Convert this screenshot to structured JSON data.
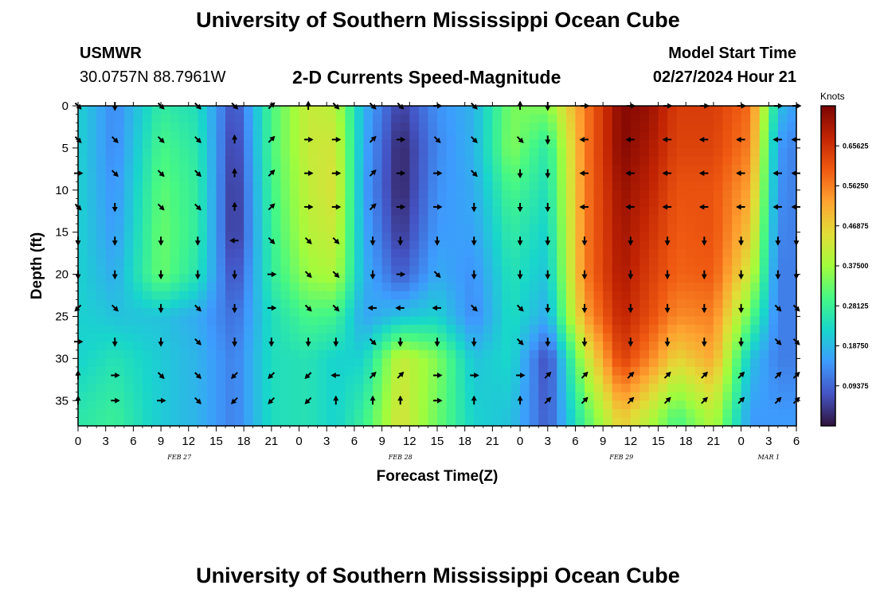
{
  "header": {
    "title": "University of Southern Mississippi Ocean Cube",
    "title_bottom": "University of Southern Mississippi Ocean Cube",
    "station": "USMWR",
    "coords": "30.0757N  88.7961W",
    "subtitle": "2-D Currents Speed-Magnitude",
    "model_start_label": "Model Start Time",
    "model_start_value": "02/27/2024 Hour 21"
  },
  "chart_data": {
    "type": "heatmap",
    "title": "2-D Currents Speed-Magnitude",
    "xlabel": "Forecast Time(Z)",
    "ylabel": "Depth (ft)",
    "units": "Knots",
    "xlim": [
      0,
      78
    ],
    "ylim": [
      38,
      0
    ],
    "x_ticks": [
      "0",
      "3",
      "6",
      "9",
      "12",
      "15",
      "18",
      "21",
      "0",
      "3",
      "6",
      "9",
      "12",
      "15",
      "18",
      "21",
      "0",
      "3",
      "6",
      "9",
      "12",
      "15",
      "18",
      "21",
      "0",
      "3",
      "6"
    ],
    "x_tick_hours": [
      0,
      3,
      6,
      9,
      12,
      15,
      18,
      21,
      24,
      27,
      30,
      33,
      36,
      39,
      42,
      45,
      48,
      51,
      54,
      57,
      60,
      63,
      66,
      69,
      72,
      75,
      78
    ],
    "y_ticks": [
      0,
      5,
      10,
      15,
      20,
      25,
      30,
      35
    ],
    "date_labels": [
      {
        "label": "FEB 27",
        "hour": 11
      },
      {
        "label": "FEB 28",
        "hour": 35
      },
      {
        "label": "FEB 29",
        "hour": 59
      },
      {
        "label": "MAR 1",
        "hour": 75
      }
    ],
    "colorbar": {
      "labels": [
        "0.65625",
        "0.56250",
        "0.46875",
        "0.37500",
        "0.28125",
        "0.18750",
        "0.09375"
      ],
      "values": [
        0.65625,
        0.5625,
        0.46875,
        0.375,
        0.28125,
        0.1875,
        0.09375
      ],
      "min": 0.0,
      "max": 0.75,
      "colors": [
        "#30123b",
        "#4454c4",
        "#3e9bfe",
        "#18d6cb",
        "#46f884",
        "#a2fc3c",
        "#e1dd37",
        "#fea331",
        "#ef5911",
        "#c22403",
        "#7a0403"
      ]
    },
    "speed_profiles": [
      {
        "hour": 0,
        "speed": [
          0.22,
          0.22,
          0.22,
          0.22,
          0.22,
          0.22,
          0.22,
          0.26
        ]
      },
      {
        "hour": 4,
        "speed": [
          0.13,
          0.13,
          0.14,
          0.15,
          0.17,
          0.2,
          0.25,
          0.28
        ]
      },
      {
        "hour": 9,
        "speed": [
          0.27,
          0.3,
          0.32,
          0.33,
          0.33,
          0.2,
          0.21,
          0.21
        ]
      },
      {
        "hour": 13,
        "speed": [
          0.24,
          0.26,
          0.27,
          0.27,
          0.25,
          0.17,
          0.18,
          0.18
        ]
      },
      {
        "hour": 17,
        "speed": [
          0.06,
          0.04,
          0.03,
          0.03,
          0.06,
          0.1,
          0.12,
          0.12
        ]
      },
      {
        "hour": 21,
        "speed": [
          0.3,
          0.3,
          0.29,
          0.28,
          0.27,
          0.24,
          0.24,
          0.24
        ]
      },
      {
        "hour": 25,
        "speed": [
          0.42,
          0.42,
          0.41,
          0.4,
          0.37,
          0.3,
          0.25,
          0.25
        ]
      },
      {
        "hour": 28,
        "speed": [
          0.4,
          0.43,
          0.44,
          0.42,
          0.39,
          0.29,
          0.22,
          0.22
        ]
      },
      {
        "hour": 31,
        "speed": [
          0.18,
          0.17,
          0.16,
          0.17,
          0.18,
          0.16,
          0.22,
          0.28
        ]
      },
      {
        "hour": 35,
        "speed": [
          0.05,
          0.02,
          0.02,
          0.04,
          0.08,
          0.2,
          0.42,
          0.44
        ]
      },
      {
        "hour": 39,
        "speed": [
          0.14,
          0.13,
          0.14,
          0.15,
          0.17,
          0.22,
          0.35,
          0.33
        ]
      },
      {
        "hour": 43,
        "speed": [
          0.18,
          0.18,
          0.17,
          0.16,
          0.14,
          0.13,
          0.2,
          0.22
        ]
      },
      {
        "hour": 47,
        "speed": [
          0.34,
          0.35,
          0.3,
          0.27,
          0.25,
          0.24,
          0.23,
          0.2
        ]
      },
      {
        "hour": 51,
        "speed": [
          0.35,
          0.26,
          0.24,
          0.22,
          0.2,
          0.17,
          0.06,
          0.08
        ]
      },
      {
        "hour": 55,
        "speed": [
          0.56,
          0.56,
          0.56,
          0.56,
          0.56,
          0.52,
          0.4,
          0.3
        ]
      },
      {
        "hour": 59,
        "speed": [
          0.74,
          0.74,
          0.72,
          0.71,
          0.7,
          0.68,
          0.64,
          0.48
        ]
      },
      {
        "hour": 62,
        "speed": [
          0.72,
          0.7,
          0.68,
          0.66,
          0.64,
          0.62,
          0.56,
          0.4
        ]
      },
      {
        "hour": 65,
        "speed": [
          0.64,
          0.63,
          0.61,
          0.6,
          0.59,
          0.55,
          0.46,
          0.3
        ]
      },
      {
        "hour": 69,
        "speed": [
          0.64,
          0.63,
          0.61,
          0.61,
          0.6,
          0.56,
          0.52,
          0.4
        ]
      },
      {
        "hour": 73,
        "speed": [
          0.58,
          0.56,
          0.52,
          0.48,
          0.42,
          0.32,
          0.2,
          0.15
        ]
      },
      {
        "hour": 76,
        "speed": [
          0.2,
          0.15,
          0.14,
          0.13,
          0.12,
          0.12,
          0.12,
          0.15
        ]
      },
      {
        "hour": 78,
        "speed": [
          0.15,
          0.12,
          0.12,
          0.12,
          0.12,
          0.12,
          0.12,
          0.15
        ]
      }
    ],
    "speed_depths_ft": [
      0,
      5,
      10,
      15,
      20,
      25,
      30,
      37
    ],
    "vector_hours": [
      0,
      4,
      9,
      13,
      17,
      21,
      25,
      28,
      32,
      35,
      39,
      43,
      48,
      51,
      55,
      60,
      64,
      68,
      72,
      76,
      78
    ],
    "vector_depths_ft": [
      0,
      4,
      8,
      12,
      16,
      20,
      24,
      28,
      32,
      35
    ],
    "vector_directions_deg": [
      [
        135,
        180,
        135,
        135,
        135,
        45,
        0,
        135,
        135,
        135,
        90,
        135,
        0,
        180,
        90,
        90,
        90,
        90,
        90,
        90,
        90
      ],
      [
        135,
        135,
        135,
        135,
        0,
        45,
        90,
        90,
        45,
        90,
        135,
        135,
        135,
        180,
        270,
        270,
        270,
        270,
        270,
        270,
        270
      ],
      [
        90,
        135,
        135,
        135,
        0,
        45,
        90,
        90,
        45,
        90,
        90,
        135,
        180,
        180,
        270,
        270,
        270,
        270,
        270,
        270,
        270
      ],
      [
        135,
        180,
        135,
        135,
        0,
        45,
        90,
        90,
        45,
        90,
        90,
        180,
        180,
        180,
        270,
        270,
        270,
        270,
        270,
        270,
        270
      ],
      [
        180,
        180,
        180,
        180,
        270,
        135,
        135,
        135,
        180,
        180,
        180,
        180,
        180,
        180,
        180,
        180,
        180,
        180,
        180,
        180,
        180
      ],
      [
        180,
        180,
        180,
        180,
        180,
        90,
        135,
        135,
        180,
        90,
        135,
        180,
        180,
        180,
        180,
        180,
        180,
        180,
        180,
        180,
        180
      ],
      [
        225,
        135,
        180,
        135,
        180,
        90,
        135,
        135,
        270,
        270,
        270,
        135,
        135,
        180,
        180,
        180,
        180,
        180,
        180,
        135,
        135
      ],
      [
        90,
        180,
        180,
        135,
        180,
        180,
        180,
        180,
        135,
        180,
        180,
        180,
        135,
        180,
        180,
        180,
        180,
        180,
        180,
        135,
        135
      ],
      [
        0,
        90,
        135,
        135,
        225,
        225,
        225,
        270,
        45,
        45,
        90,
        90,
        90,
        45,
        45,
        45,
        45,
        45,
        45,
        45,
        45
      ],
      [
        0,
        90,
        90,
        135,
        225,
        225,
        225,
        0,
        0,
        0,
        90,
        0,
        0,
        45,
        45,
        45,
        45,
        45,
        45,
        45,
        45
      ]
    ]
  }
}
